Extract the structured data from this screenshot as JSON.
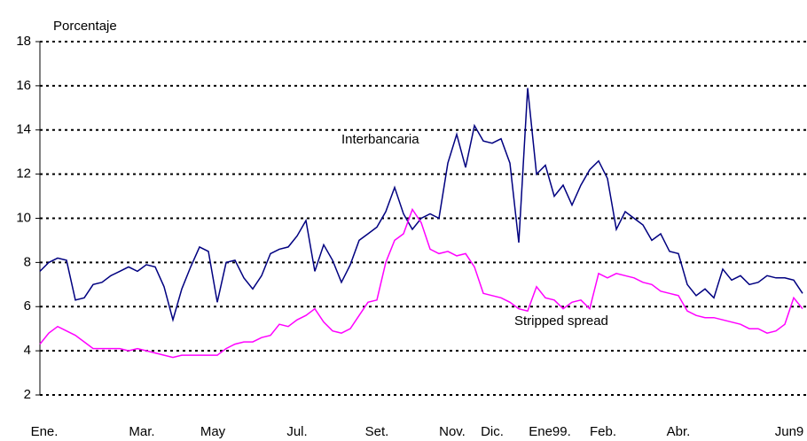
{
  "chart_data": {
    "type": "line",
    "y_label": "Porcentaje",
    "annotations": [
      "Interbancaria",
      "Stripped spread"
    ],
    "x": [
      0,
      1,
      2,
      3,
      4,
      5,
      6,
      7,
      8,
      9,
      10,
      11,
      12,
      13,
      14,
      15,
      16,
      17,
      18,
      19,
      20,
      21,
      22,
      23,
      24,
      25,
      26,
      27,
      28,
      29,
      30,
      31,
      32,
      33,
      34,
      35,
      36,
      37,
      38,
      39,
      40,
      41,
      42,
      43,
      44,
      45,
      46,
      47,
      48,
      49,
      50,
      51,
      52,
      53,
      54,
      55,
      56,
      57,
      58,
      59,
      60,
      61,
      62,
      63,
      64,
      65,
      66,
      67,
      68,
      69,
      70,
      71,
      72,
      73,
      74,
      75,
      76,
      77,
      78,
      79,
      80,
      81,
      82,
      83,
      84,
      85,
      86
    ],
    "xlim": [
      0,
      86.5
    ],
    "xticks": [
      {
        "value": 0.5,
        "label": "Ene."
      },
      {
        "value": 11.5,
        "label": "Mar."
      },
      {
        "value": 19.5,
        "label": "May"
      },
      {
        "value": 29,
        "label": "Jul."
      },
      {
        "value": 38,
        "label": "Set."
      },
      {
        "value": 46.5,
        "label": "Nov."
      },
      {
        "value": 51,
        "label": "Dic."
      },
      {
        "value": 57.5,
        "label": "Ene99."
      },
      {
        "value": 63.5,
        "label": "Feb."
      },
      {
        "value": 72,
        "label": "Abr."
      },
      {
        "value": 84.5,
        "label": "Jun9"
      }
    ],
    "ylim": [
      2,
      18
    ],
    "yticks": [
      2,
      4,
      6,
      8,
      10,
      12,
      14,
      16,
      18
    ],
    "grid": true,
    "series": [
      {
        "name": "Interbancaria",
        "color": "#000080",
        "values": [
          7.6,
          8.0,
          8.2,
          8.1,
          6.3,
          6.4,
          7.0,
          7.1,
          7.4,
          7.6,
          7.8,
          7.6,
          7.9,
          7.8,
          6.9,
          5.4,
          6.8,
          7.8,
          8.7,
          8.5,
          6.2,
          8.0,
          8.1,
          7.3,
          6.8,
          7.4,
          8.4,
          8.6,
          8.7,
          9.2,
          9.9,
          7.6,
          8.8,
          8.1,
          7.1,
          7.9,
          9.0,
          9.3,
          9.6,
          10.3,
          11.4,
          10.2,
          9.5,
          10.0,
          10.2,
          10.0,
          12.5,
          13.8,
          12.3,
          14.2,
          13.5,
          13.4,
          13.6,
          12.5,
          8.9,
          15.9,
          12.0,
          12.4,
          11.0,
          11.5,
          10.6,
          11.5,
          12.2,
          12.6,
          11.8,
          9.5,
          10.3,
          10.0,
          9.7,
          9.0,
          9.3,
          8.5,
          8.4,
          7.0,
          6.5,
          6.8,
          6.4,
          7.7,
          7.2,
          7.4,
          7.0,
          7.1,
          7.4,
          7.3,
          7.3,
          7.2,
          6.6
        ]
      },
      {
        "name": "Stripped spread",
        "color": "#ff00ff",
        "values": [
          4.3,
          4.8,
          5.1,
          4.9,
          4.7,
          4.4,
          4.1,
          4.1,
          4.1,
          4.1,
          4.0,
          4.1,
          4.0,
          3.9,
          3.8,
          3.7,
          3.8,
          3.8,
          3.8,
          3.8,
          3.8,
          4.1,
          4.3,
          4.4,
          4.4,
          4.6,
          4.7,
          5.2,
          5.1,
          5.4,
          5.6,
          5.9,
          5.3,
          4.9,
          4.8,
          5.0,
          5.6,
          6.2,
          6.3,
          8.0,
          9.0,
          9.3,
          10.4,
          9.8,
          8.6,
          8.4,
          8.5,
          8.3,
          8.4,
          7.8,
          6.6,
          6.5,
          6.4,
          6.2,
          5.9,
          5.8,
          6.9,
          6.4,
          6.3,
          5.9,
          6.2,
          6.3,
          5.9,
          7.5,
          7.3,
          7.5,
          7.4,
          7.3,
          7.1,
          7.0,
          6.7,
          6.6,
          6.5,
          5.8,
          5.6,
          5.5,
          5.5,
          5.4,
          5.3,
          5.2,
          5.0,
          5.0,
          4.8,
          4.9,
          5.2,
          6.4,
          5.9
        ]
      }
    ]
  }
}
